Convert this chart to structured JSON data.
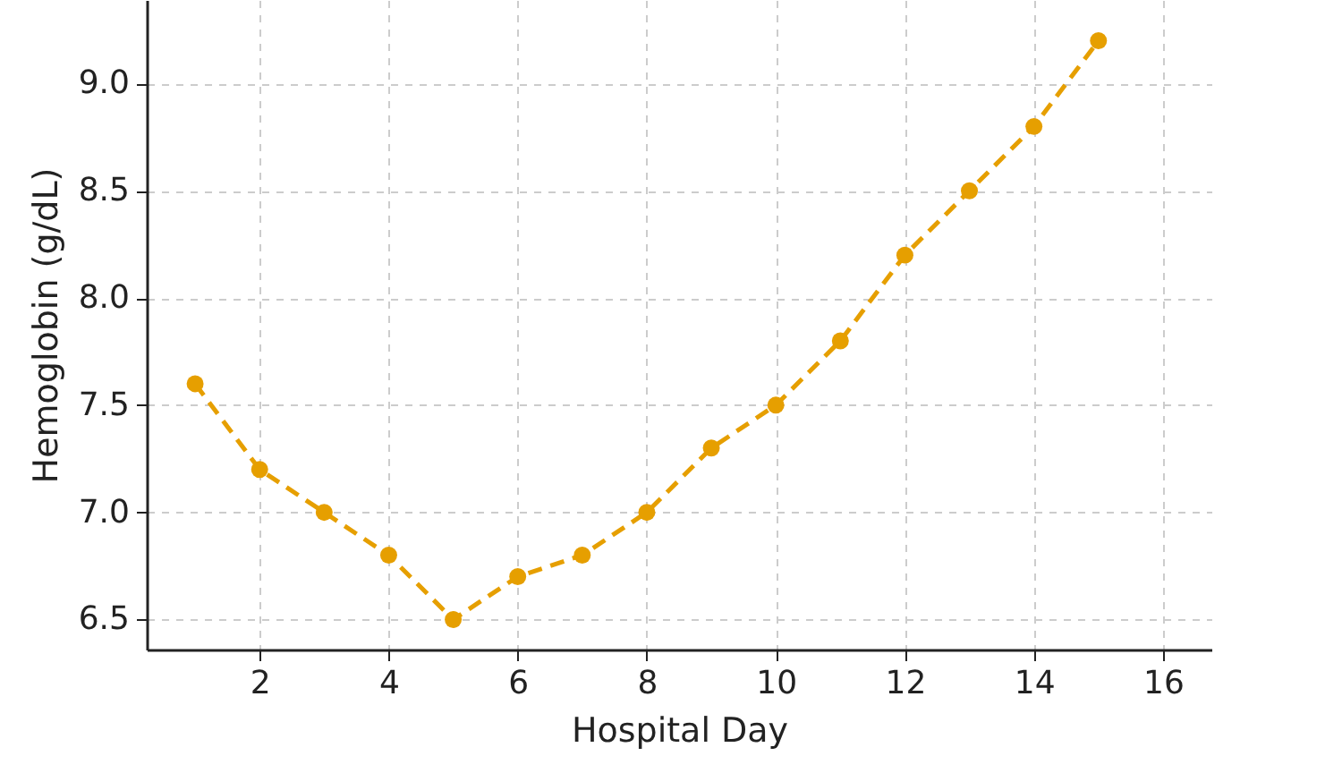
{
  "chart_data": {
    "type": "line",
    "xlabel": "Hospital Day",
    "ylabel": "Hemoglobin (g/dL)",
    "x": [
      1,
      2,
      3,
      4,
      5,
      6,
      7,
      8,
      9,
      10,
      11,
      12,
      13,
      14,
      15
    ],
    "series": [
      {
        "color": "#e69f00",
        "values": [
          7.6,
          7.2,
          7.0,
          6.8,
          6.5,
          6.7,
          6.8,
          7.0,
          7.3,
          7.5,
          7.8,
          8.2,
          8.5,
          8.8,
          9.2
        ]
      }
    ],
    "xlim": [
      0.25,
      16.75
    ],
    "xticks": [
      2,
      4,
      6,
      8,
      10,
      12,
      14,
      16
    ],
    "ylim": [
      6.36,
      9.39
    ],
    "yticks": [
      {
        "value": 6.5,
        "label": "6.5"
      },
      {
        "value": 7,
        "label": "7.0"
      },
      {
        "value": 7.5,
        "label": "7.5"
      },
      {
        "value": 8,
        "label": "8.0"
      },
      {
        "value": 8.5,
        "label": "8.5"
      },
      {
        "value": 9,
        "label": "9.0"
      }
    ],
    "grid": true,
    "marker": "circle",
    "line_style": "dashed"
  }
}
